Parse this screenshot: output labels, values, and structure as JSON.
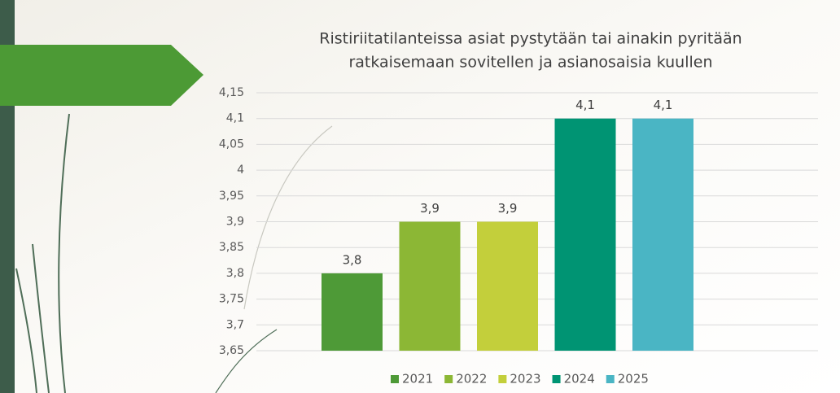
{
  "chart_data": {
    "type": "bar",
    "title": [
      "Ristiriitatilanteissa asiat pystytään tai ainakin pyritään",
      "ratkaisemaan sovitellen ja asianosaisia kuullen"
    ],
    "series": [
      {
        "name": "2021",
        "color": "#4e9a37",
        "values": [
          3.8
        ],
        "value_labels": [
          "3,8"
        ]
      },
      {
        "name": "2022",
        "color": "#8cb735",
        "values": [
          3.9
        ],
        "value_labels": [
          "3,9"
        ]
      },
      {
        "name": "2023",
        "color": "#c3cf3b",
        "values": [
          3.9
        ],
        "value_labels": [
          "3,9"
        ]
      },
      {
        "name": "2024",
        "color": "#009473",
        "values": [
          4.1
        ],
        "value_labels": [
          "4,1"
        ]
      },
      {
        "name": "2025",
        "color": "#4ab5c4",
        "values": [
          4.1
        ],
        "value_labels": [
          "4,1"
        ]
      }
    ],
    "ylim": [
      3.65,
      4.15
    ],
    "yticks": [
      {
        "value": 3.65,
        "label": "3,65"
      },
      {
        "value": 3.7,
        "label": "3,7"
      },
      {
        "value": 3.75,
        "label": "3,75"
      },
      {
        "value": 3.8,
        "label": "3,8"
      },
      {
        "value": 3.85,
        "label": "3,85"
      },
      {
        "value": 3.9,
        "label": "3,9"
      },
      {
        "value": 3.95,
        "label": "3,95"
      },
      4,
      {
        "value": 4.05,
        "label": "4,05"
      },
      {
        "value": 4.1,
        "label": "4,1"
      },
      {
        "value": 4.15,
        "label": "4,15"
      }
    ],
    "grid": true,
    "legend": "bottom"
  }
}
